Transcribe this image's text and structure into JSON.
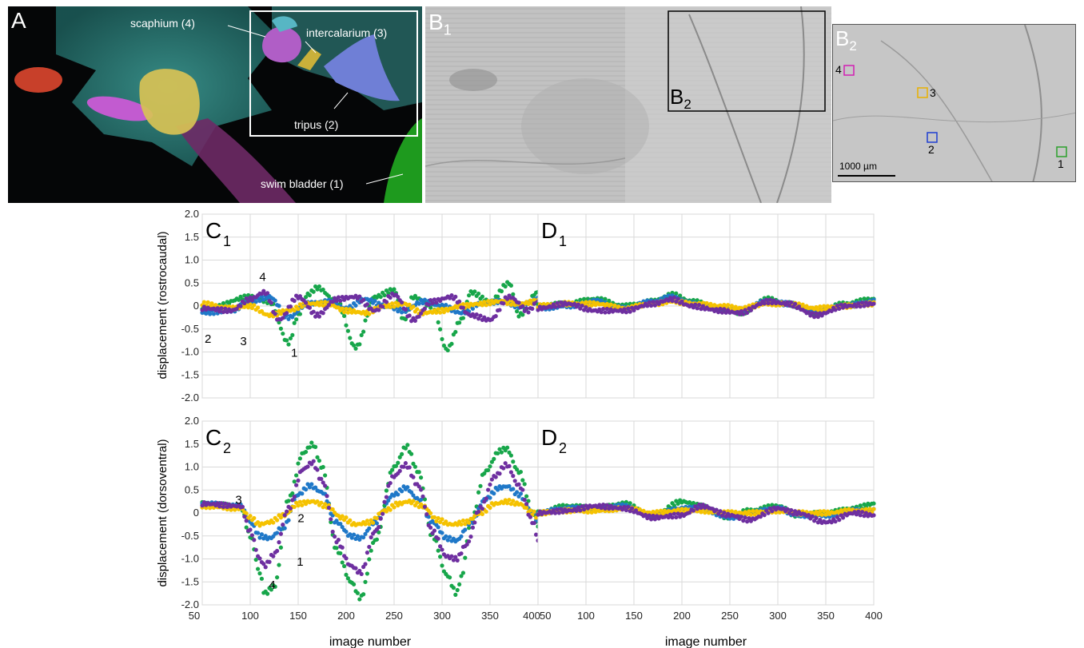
{
  "figure": {
    "panel_a": {
      "letter": "A",
      "labels": {
        "scaphium": "scaphium (4)",
        "intercalarium": "intercalarium (3)",
        "tripus": "tripus (2)",
        "swim_bladder": "swim bladder (1)"
      }
    },
    "panel_b1": {
      "letter": "B",
      "sub": "1",
      "inset_letter": "B",
      "inset_sub": "2"
    },
    "panel_b2": {
      "letter": "B",
      "sub": "2",
      "markers": [
        {
          "id": "1",
          "color": "#2ca02c"
        },
        {
          "id": "2",
          "color": "#1f3fd0"
        },
        {
          "id": "3",
          "color": "#e8b000"
        },
        {
          "id": "4",
          "color": "#d21fb3"
        }
      ],
      "scale_bar": "1000 µm"
    },
    "axes": {
      "c1_ylabel": "displacement (rostrocaudal)",
      "c2_ylabel": "displacement (dorsoventral)",
      "xlabel": "image number"
    }
  },
  "chart_data": [
    {
      "type": "scatter",
      "panel": "C",
      "sub": "1",
      "ylabel": "displacement (rostrocaudal)",
      "xlabel": "",
      "xlim": [
        50,
        400
      ],
      "ylim": [
        -2.0,
        2.0
      ],
      "xticks": [
        50,
        100,
        150,
        200,
        250,
        300,
        350,
        400
      ],
      "yticks": [
        2.0,
        1.5,
        1.0,
        0.5,
        0,
        -0.5,
        -1.0,
        -1.5,
        -2.0
      ],
      "grid": true,
      "annotations": [
        {
          "text": "4",
          "x": 113,
          "y": 0.55
        },
        {
          "text": "2",
          "x": 56,
          "y": -0.8
        },
        {
          "text": "3",
          "x": 93,
          "y": -0.85
        },
        {
          "text": "1",
          "x": 146,
          "y": -1.1
        }
      ],
      "series": [
        {
          "id": "1",
          "color": "#17a64a",
          "x": [
            50,
            100,
            120,
            140,
            150,
            160,
            170,
            190,
            210,
            230,
            250,
            260,
            270,
            290,
            305,
            320,
            330,
            350,
            370,
            380,
            400
          ],
          "y": [
            -0.1,
            0.2,
            0.1,
            -0.8,
            -0.2,
            0.25,
            0.4,
            0.1,
            -0.9,
            0.2,
            0.35,
            -0.3,
            0.2,
            0.0,
            -0.95,
            -0.3,
            0.3,
            0.1,
            0.5,
            -0.2,
            0.3
          ]
        },
        {
          "id": "2",
          "color": "#1f78c8",
          "x": [
            50,
            80,
            100,
            120,
            140,
            160,
            180,
            200,
            220,
            240,
            260,
            280,
            300,
            320,
            340,
            360,
            380,
            400
          ],
          "y": [
            -0.15,
            -0.1,
            0.1,
            0.2,
            -0.25,
            0.05,
            0.1,
            -0.05,
            0.15,
            0.0,
            -0.1,
            0.1,
            0.0,
            -0.15,
            0.05,
            0.1,
            0.0,
            0.15
          ]
        },
        {
          "id": "3",
          "color": "#f5c200",
          "x": [
            50,
            80,
            100,
            120,
            140,
            160,
            180,
            200,
            220,
            240,
            260,
            280,
            300,
            320,
            340,
            360,
            380,
            400
          ],
          "y": [
            0.05,
            -0.05,
            0.0,
            -0.2,
            -0.1,
            0.05,
            0.05,
            -0.1,
            -0.15,
            0.0,
            0.05,
            -0.15,
            -0.1,
            0.0,
            0.05,
            0.1,
            0.05,
            0.1
          ]
        },
        {
          "id": "4",
          "color": "#6e2fa0",
          "x": [
            50,
            80,
            100,
            115,
            130,
            150,
            170,
            190,
            210,
            230,
            250,
            270,
            290,
            310,
            330,
            350,
            370,
            390,
            400
          ],
          "y": [
            -0.05,
            -0.1,
            0.15,
            0.3,
            -0.3,
            0.2,
            -0.2,
            0.15,
            0.2,
            -0.1,
            0.25,
            -0.3,
            0.1,
            0.2,
            -0.2,
            -0.3,
            0.2,
            -0.1,
            0.1
          ]
        }
      ]
    },
    {
      "type": "scatter",
      "panel": "D",
      "sub": "1",
      "ylabel": "",
      "xlabel": "",
      "xlim": [
        50,
        400
      ],
      "ylim": [
        -2.0,
        2.0
      ],
      "xticks": [
        50,
        100,
        150,
        200,
        250,
        300,
        350,
        400
      ],
      "grid": true,
      "series": [
        {
          "id": "1",
          "color": "#17a64a",
          "x": [
            50,
            80,
            110,
            140,
            170,
            190,
            210,
            240,
            260,
            290,
            310,
            340,
            370,
            400
          ],
          "y": [
            0.0,
            0.05,
            0.15,
            0.0,
            0.1,
            0.25,
            0.1,
            -0.05,
            -0.15,
            0.15,
            0.05,
            -0.15,
            0.05,
            0.15
          ]
        },
        {
          "id": "2",
          "color": "#1f78c8",
          "x": [
            50,
            80,
            110,
            140,
            170,
            190,
            210,
            240,
            260,
            290,
            310,
            340,
            370,
            400
          ],
          "y": [
            -0.05,
            0.0,
            0.1,
            -0.05,
            0.1,
            0.2,
            0.05,
            -0.05,
            -0.1,
            0.1,
            0.05,
            -0.1,
            0.0,
            0.1
          ]
        },
        {
          "id": "3",
          "color": "#f5c200",
          "x": [
            50,
            80,
            110,
            140,
            170,
            190,
            210,
            240,
            260,
            290,
            310,
            340,
            370,
            400
          ],
          "y": [
            0.0,
            0.05,
            0.05,
            -0.05,
            0.05,
            0.1,
            0.05,
            0.0,
            -0.05,
            0.05,
            0.05,
            -0.05,
            0.0,
            0.05
          ]
        },
        {
          "id": "4",
          "color": "#6e2fa0",
          "x": [
            50,
            80,
            110,
            140,
            170,
            190,
            210,
            240,
            260,
            290,
            310,
            340,
            370,
            400
          ],
          "y": [
            -0.05,
            0.05,
            -0.1,
            -0.1,
            0.05,
            0.15,
            0.0,
            -0.1,
            -0.15,
            0.1,
            0.05,
            -0.2,
            0.0,
            0.05
          ]
        }
      ]
    },
    {
      "type": "scatter",
      "panel": "C",
      "sub": "2",
      "ylabel": "displacement (dorsoventral)",
      "xlabel": "image number",
      "xlim": [
        50,
        400
      ],
      "ylim": [
        -2.0,
        2.0
      ],
      "xticks": [
        50,
        100,
        150,
        200,
        250,
        300,
        350,
        400
      ],
      "yticks": [
        2.0,
        1.5,
        1.0,
        0.5,
        0,
        -0.5,
        -1.0,
        -1.5,
        -2.0
      ],
      "grid": true,
      "annotations": [
        {
          "text": "3",
          "x": 88,
          "y": 0.2
        },
        {
          "text": "2",
          "x": 153,
          "y": -0.2
        },
        {
          "text": "1",
          "x": 152,
          "y": -1.15
        },
        {
          "text": "4",
          "x": 123,
          "y": -1.65
        }
      ],
      "series": [
        {
          "id": "1",
          "color": "#17a64a",
          "x": [
            50,
            90,
            100,
            110,
            115,
            125,
            140,
            155,
            165,
            175,
            190,
            205,
            215,
            230,
            250,
            263,
            275,
            290,
            305,
            315,
            320,
            330,
            345,
            360,
            367,
            380,
            395,
            400
          ],
          "y": [
            0.2,
            0.15,
            -0.5,
            -1.3,
            -1.75,
            -1.6,
            0.3,
            1.3,
            1.5,
            1.0,
            -0.8,
            -1.5,
            -1.85,
            -0.6,
            1.0,
            1.45,
            0.9,
            -0.5,
            -1.35,
            -1.75,
            -1.4,
            -0.2,
            0.9,
            1.35,
            1.4,
            0.9,
            0.0,
            -0.3
          ]
        },
        {
          "id": "2",
          "color": "#1f78c8",
          "x": [
            50,
            90,
            100,
            110,
            120,
            135,
            150,
            162,
            175,
            190,
            205,
            215,
            230,
            250,
            262,
            275,
            290,
            305,
            315,
            330,
            345,
            360,
            368,
            380,
            395,
            400
          ],
          "y": [
            0.2,
            0.15,
            -0.2,
            -0.5,
            -0.55,
            -0.3,
            0.4,
            0.6,
            0.45,
            -0.2,
            -0.5,
            -0.55,
            -0.2,
            0.4,
            0.55,
            0.3,
            -0.2,
            -0.55,
            -0.6,
            -0.2,
            0.3,
            0.55,
            0.58,
            0.4,
            0.0,
            -0.2
          ]
        },
        {
          "id": "3",
          "color": "#f5c200",
          "x": [
            50,
            90,
            100,
            110,
            120,
            135,
            150,
            165,
            180,
            195,
            210,
            225,
            240,
            255,
            265,
            280,
            295,
            310,
            325,
            340,
            355,
            368,
            380,
            395,
            400
          ],
          "y": [
            0.15,
            0.1,
            -0.1,
            -0.25,
            -0.2,
            -0.05,
            0.2,
            0.25,
            0.15,
            -0.1,
            -0.25,
            -0.2,
            0.05,
            0.2,
            0.25,
            0.15,
            -0.15,
            -0.25,
            -0.2,
            0.0,
            0.2,
            0.25,
            0.2,
            0.0,
            -0.1
          ]
        },
        {
          "id": "4",
          "color": "#6e2fa0",
          "x": [
            50,
            90,
            100,
            110,
            115,
            125,
            140,
            155,
            165,
            175,
            190,
            205,
            215,
            230,
            250,
            262,
            275,
            290,
            305,
            315,
            325,
            340,
            355,
            367,
            380,
            395,
            400
          ],
          "y": [
            0.2,
            0.15,
            -0.4,
            -1.0,
            -1.15,
            -0.9,
            0.1,
            0.95,
            1.1,
            0.7,
            -0.6,
            -1.15,
            -1.3,
            -0.4,
            0.8,
            1.05,
            0.6,
            -0.4,
            -0.95,
            -1.0,
            -0.7,
            0.1,
            0.8,
            1.05,
            0.6,
            -0.2,
            -0.6
          ]
        }
      ]
    },
    {
      "type": "scatter",
      "panel": "D",
      "sub": "2",
      "ylabel": "",
      "xlabel": "image number",
      "xlim": [
        50,
        400
      ],
      "ylim": [
        -2.0,
        2.0
      ],
      "xticks": [
        50,
        100,
        150,
        200,
        250,
        300,
        350,
        400
      ],
      "grid": true,
      "series": [
        {
          "id": "1",
          "color": "#17a64a",
          "x": [
            50,
            80,
            110,
            140,
            170,
            200,
            220,
            250,
            270,
            300,
            320,
            350,
            380,
            400
          ],
          "y": [
            0.0,
            0.15,
            0.1,
            0.2,
            -0.05,
            0.25,
            0.15,
            -0.1,
            0.05,
            0.15,
            -0.05,
            0.0,
            0.1,
            0.2
          ]
        },
        {
          "id": "2",
          "color": "#1f78c8",
          "x": [
            50,
            80,
            110,
            140,
            170,
            200,
            220,
            250,
            270,
            300,
            320,
            350,
            380,
            400
          ],
          "y": [
            0.0,
            0.1,
            0.1,
            0.15,
            -0.05,
            0.1,
            0.1,
            -0.1,
            0.0,
            0.1,
            -0.05,
            -0.05,
            0.05,
            0.05
          ]
        },
        {
          "id": "3",
          "color": "#f5c200",
          "x": [
            50,
            80,
            110,
            140,
            170,
            200,
            220,
            250,
            270,
            300,
            320,
            350,
            380,
            400
          ],
          "y": [
            0.0,
            0.05,
            0.05,
            0.1,
            0.0,
            0.05,
            0.05,
            0.0,
            0.0,
            0.05,
            0.0,
            0.0,
            0.05,
            0.05
          ]
        },
        {
          "id": "4",
          "color": "#6e2fa0",
          "x": [
            50,
            80,
            110,
            140,
            170,
            200,
            220,
            250,
            270,
            300,
            320,
            350,
            380,
            400
          ],
          "y": [
            0.0,
            0.05,
            0.15,
            0.1,
            -0.1,
            -0.05,
            0.15,
            -0.05,
            -0.15,
            0.1,
            0.0,
            -0.2,
            0.0,
            -0.05
          ]
        }
      ]
    }
  ]
}
